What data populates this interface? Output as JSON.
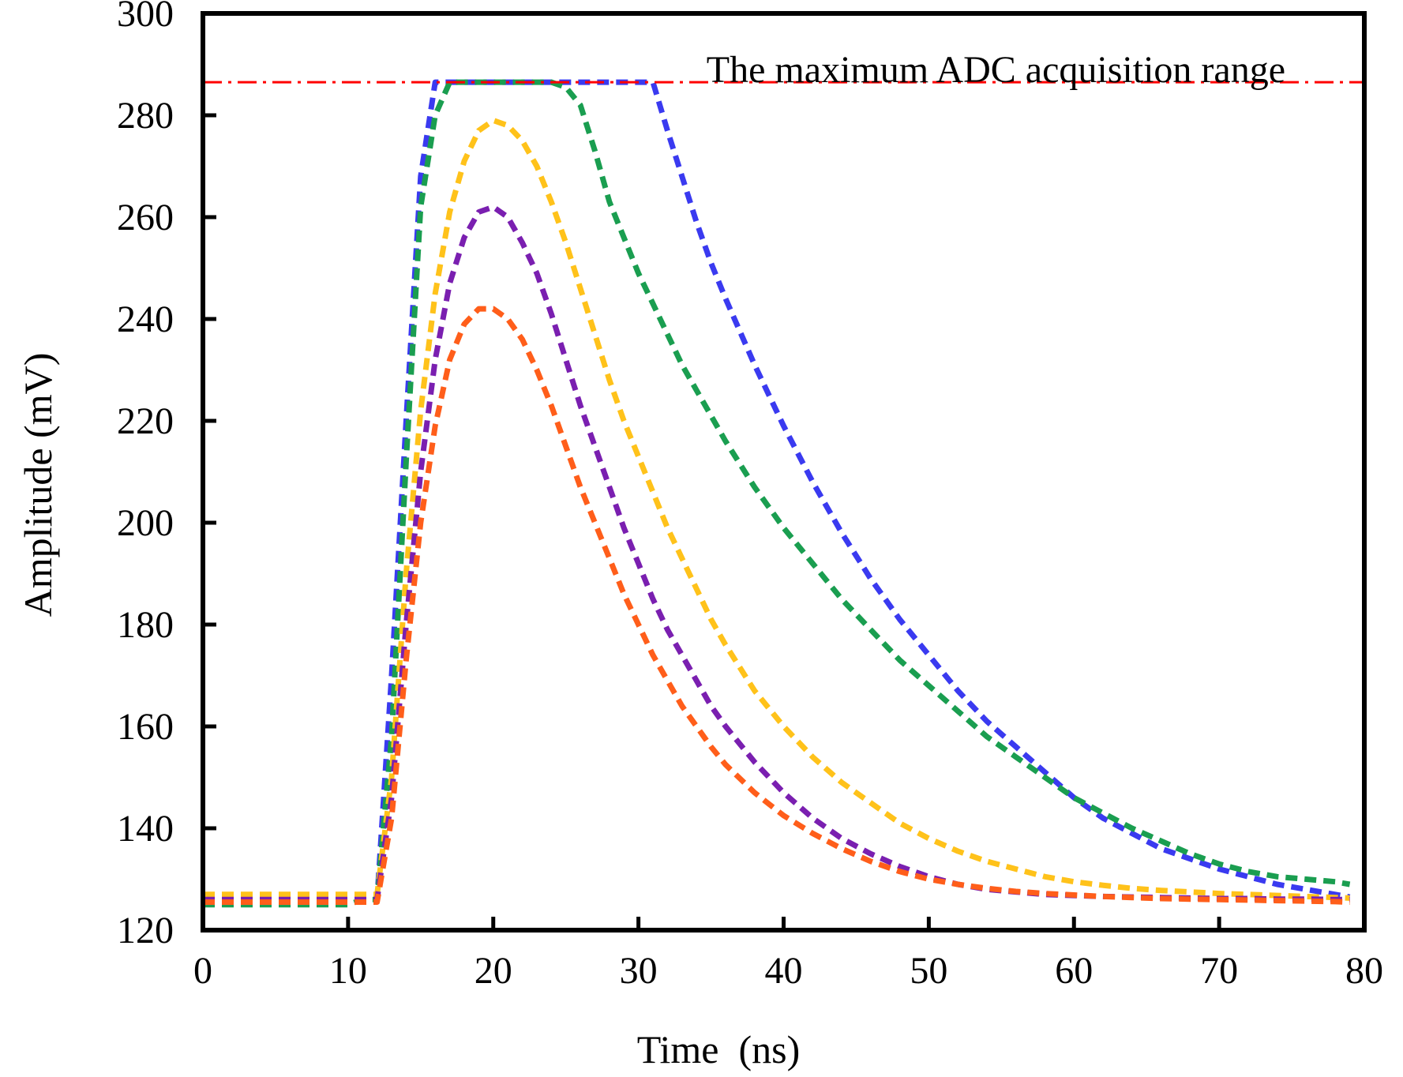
{
  "chart_data": {
    "type": "line",
    "title": "",
    "xlabel": "Time  (ns)",
    "ylabel": "Amplitude (mV)",
    "xlim": [
      0,
      80
    ],
    "ylim": [
      120,
      300
    ],
    "xticks": [
      0,
      10,
      20,
      30,
      40,
      50,
      60,
      70,
      80
    ],
    "yticks": [
      120,
      140,
      160,
      180,
      200,
      220,
      240,
      260,
      280,
      300
    ],
    "grid": false,
    "reference_line": {
      "label": "The maximum ADC acquisition range",
      "y": 286.5,
      "color": "#ff0000",
      "style": "dash-dot"
    },
    "x": [
      0,
      2,
      4,
      6,
      8,
      10,
      11,
      12,
      13,
      14,
      15,
      16,
      17,
      18,
      19,
      20,
      21,
      22,
      23,
      24,
      25,
      26,
      27,
      28,
      29,
      30,
      31,
      32,
      33,
      34,
      35,
      36,
      38,
      40,
      42,
      44,
      46,
      48,
      50,
      52,
      54,
      56,
      58,
      60,
      62,
      64,
      66,
      68,
      70,
      72,
      74,
      76,
      78,
      79
    ],
    "series": [
      {
        "name": "blue",
        "color": "#3a3af0",
        "values": [
          126,
          126,
          126,
          126,
          126,
          126,
          126,
          126,
          170,
          220,
          268,
          286.5,
          286.5,
          286.5,
          286.5,
          286.5,
          286.5,
          286.5,
          286.5,
          286.5,
          286.5,
          286.5,
          286.5,
          286.5,
          286.5,
          286.5,
          286.5,
          277,
          268,
          259,
          251,
          244,
          231,
          219,
          208,
          198,
          189,
          181,
          174,
          167,
          161,
          156,
          151,
          146,
          142,
          139,
          136,
          134,
          132,
          130.5,
          129,
          128,
          127,
          126.5
        ]
      },
      {
        "name": "green",
        "color": "#1a9e50",
        "values": [
          125,
          125,
          125,
          125,
          125,
          125,
          126,
          126,
          158,
          212,
          262,
          280,
          286.5,
          286.5,
          286.5,
          286.5,
          286.5,
          286.5,
          286.5,
          286.5,
          285.5,
          282,
          273,
          263,
          256,
          249,
          243,
          237,
          231,
          226,
          221,
          216,
          207,
          199,
          192,
          185,
          179,
          173,
          168,
          163,
          158,
          154,
          150,
          146,
          143,
          140,
          137.5,
          135,
          133,
          131.5,
          130.5,
          130,
          129.5,
          129
        ]
      },
      {
        "name": "yellow",
        "color": "#ffc21a",
        "values": [
          127,
          127,
          127,
          127,
          127,
          127,
          127,
          127,
          150,
          190,
          222,
          245,
          261,
          271,
          277,
          279,
          278,
          275,
          270,
          263,
          255,
          246,
          237,
          228,
          220,
          213,
          206,
          199,
          193,
          187,
          181,
          176,
          167,
          160,
          154,
          149,
          145,
          141,
          138,
          135.5,
          133.5,
          132,
          130.5,
          129.5,
          128.8,
          128.2,
          127.8,
          127.5,
          127.2,
          127,
          126.8,
          126.6,
          126.4,
          126.3
        ]
      },
      {
        "name": "purple",
        "color": "#7a1fb0",
        "values": [
          126,
          126,
          126,
          126,
          126,
          126,
          126,
          126,
          146,
          180,
          210,
          232,
          247,
          256,
          261,
          262,
          260,
          255,
          249,
          241,
          232,
          223,
          215,
          207,
          199,
          192,
          185,
          179,
          174,
          169,
          164,
          160,
          153,
          147,
          142,
          138,
          135,
          132.5,
          130.5,
          129,
          128,
          127.5,
          127,
          126.8,
          126.6,
          126.5,
          126.4,
          126.3,
          126.2,
          126.2,
          126.1,
          126.1,
          126,
          126
        ]
      },
      {
        "name": "orange",
        "color": "#ff5e1a",
        "values": [
          125.5,
          125.5,
          125.5,
          125.5,
          125.5,
          125.5,
          125.5,
          125.5,
          142,
          173,
          200,
          219,
          232,
          239,
          242,
          242,
          240,
          236,
          230,
          223,
          215,
          207,
          200,
          193,
          186,
          180,
          174,
          169,
          164,
          160,
          156,
          152.5,
          147,
          142.5,
          139,
          136,
          133.5,
          131.5,
          130,
          129,
          128.2,
          127.6,
          127.2,
          126.9,
          126.6,
          126.4,
          126.2,
          126.1,
          126,
          125.9,
          125.8,
          125.7,
          125.6,
          125.5
        ]
      }
    ]
  }
}
